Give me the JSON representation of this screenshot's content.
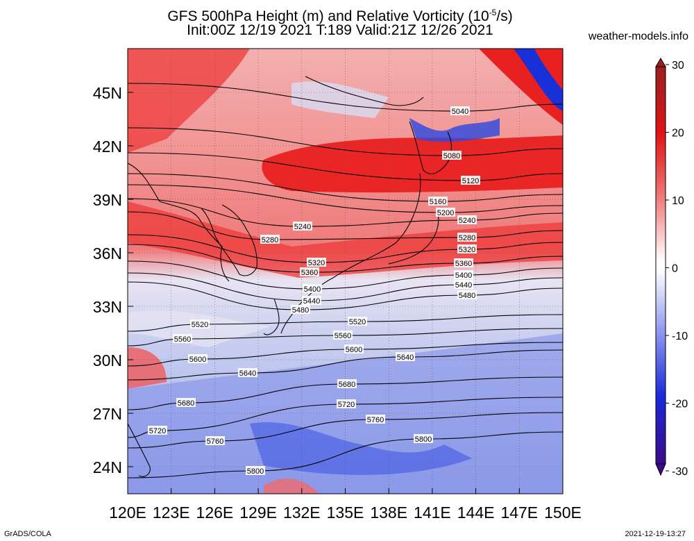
{
  "title_line1": "GFS 500hPa Height (m) and Relative Vorticity (10",
  "title_sup": "-5",
  "title_line1_end": "/s)",
  "title_line2": "Init:00Z 12/19 2021 T:189 Valid:21Z 12/26 2021",
  "site": "weather-models.info",
  "footer_left": "GrADS/COLA",
  "footer_right": "2021-12-19-13:27",
  "lon_labels": [
    "120E",
    "123E",
    "126E",
    "129E",
    "132E",
    "135E",
    "138E",
    "141E",
    "144E",
    "147E",
    "150E"
  ],
  "lat_labels": [
    "45N",
    "42N",
    "39N",
    "36N",
    "33N",
    "30N",
    "27N",
    "24N"
  ],
  "colorbar": {
    "labels": [
      "30",
      "20",
      "10",
      "0",
      "-10",
      "-20",
      "-30"
    ],
    "min": -30,
    "max": 30
  },
  "contours": [
    {
      "v": "5040",
      "labels": [
        [
          663,
          160
        ]
      ]
    },
    {
      "v": "5080",
      "labels": [
        [
          651,
          224
        ]
      ]
    },
    {
      "v": "5120",
      "labels": [
        [
          678,
          260
        ]
      ]
    },
    {
      "v": "5160",
      "labels": [
        [
          631,
          290
        ]
      ]
    },
    {
      "v": "5200",
      "labels": [
        [
          642,
          306
        ]
      ]
    },
    {
      "v": "5240",
      "labels": [
        [
          436,
          326
        ],
        [
          673,
          317
        ]
      ]
    },
    {
      "v": "5280",
      "labels": [
        [
          389,
          345
        ],
        [
          673,
          342
        ]
      ]
    },
    {
      "v": "5320",
      "labels": [
        [
          456,
          378
        ],
        [
          673,
          359
        ]
      ]
    },
    {
      "v": "5360",
      "labels": [
        [
          446,
          392
        ],
        [
          668,
          379
        ]
      ]
    },
    {
      "v": "5400",
      "labels": [
        [
          450,
          416
        ],
        [
          668,
          396
        ]
      ]
    },
    {
      "v": "5440",
      "labels": [
        [
          449,
          433
        ],
        [
          668,
          410
        ]
      ]
    },
    {
      "v": "5480",
      "labels": [
        [
          433,
          446
        ],
        [
          673,
          425
        ]
      ]
    },
    {
      "v": "5520",
      "labels": [
        [
          288,
          467
        ],
        [
          515,
          463
        ]
      ]
    },
    {
      "v": "5560",
      "labels": [
        [
          263,
          488
        ],
        [
          494,
          483
        ]
      ]
    },
    {
      "v": "5600",
      "labels": [
        [
          285,
          517
        ],
        [
          510,
          503
        ]
      ]
    },
    {
      "v": "5640",
      "labels": [
        [
          357,
          537
        ],
        [
          584,
          514
        ]
      ]
    },
    {
      "v": "5680",
      "labels": [
        [
          268,
          580
        ],
        [
          500,
          553
        ]
      ]
    },
    {
      "v": "5720",
      "labels": [
        [
          227,
          620
        ],
        [
          499,
          582
        ]
      ]
    },
    {
      "v": "5760",
      "labels": [
        [
          310,
          635
        ],
        [
          541,
          604
        ]
      ]
    },
    {
      "v": "5800",
      "labels": [
        [
          368,
          678
        ],
        [
          610,
          632
        ]
      ]
    }
  ]
}
